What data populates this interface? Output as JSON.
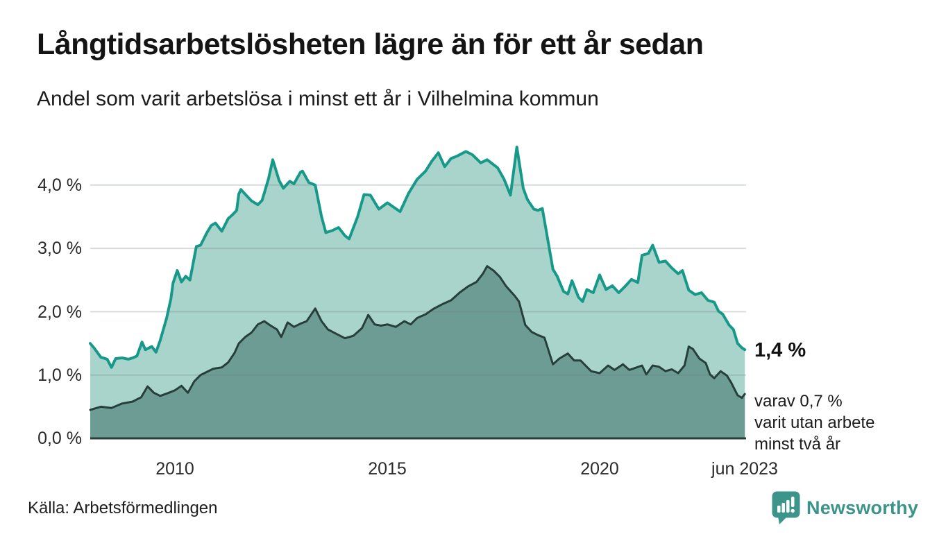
{
  "header": {
    "title": "Långtidsarbetslösheten lägre än för ett år sedan",
    "subtitle": "Andel som varit arbetslösa i minst ett år i Vilhelmina kommun"
  },
  "annotations": {
    "latest_total": "1,4 %",
    "latest_sub_lines": [
      "varav 0,7 %",
      "varit utan arbete",
      "minst två år"
    ]
  },
  "footer": {
    "source": "Källa: Arbetsförmedlingen",
    "brand": "Newsworthy"
  },
  "colors": {
    "brand_teal": "#3c948b",
    "line_main": "#17998a",
    "fill_main": "#a9d4cc",
    "line_sub": "#263f3b",
    "fill_sub": "#6d9c95",
    "grid": "#d9dedd"
  },
  "chart_data": {
    "type": "area",
    "title": "Långtidsarbetslösheten lägre än för ett år sedan",
    "subtitle": "Andel som varit arbetslösa i minst ett år i Vilhelmina kommun",
    "unit": "%",
    "grid": true,
    "legend": "none",
    "x_axis": {
      "min": 2008.0,
      "max": 2023.45,
      "ticks": [
        {
          "label": "2010",
          "year": 2010
        },
        {
          "label": "2015",
          "year": 2015
        },
        {
          "label": "2020",
          "year": 2020
        },
        {
          "label": "jun 2023",
          "year": 2023.42
        }
      ]
    },
    "y_axis": {
      "min": 0,
      "max": 4.75,
      "ticks": [
        {
          "label": "4,0 %",
          "value": 4
        },
        {
          "label": "3,0 %",
          "value": 3
        },
        {
          "label": "2,0 %",
          "value": 2
        },
        {
          "label": "1,0 %",
          "value": 1
        },
        {
          "label": "0,0 %",
          "value": 0
        }
      ]
    },
    "series": [
      {
        "id": "minst-ett-ar",
        "name": "Andel arbetslösa minst ett år",
        "fill": "#a9d4cc",
        "stroke": "#17998a",
        "stroke_width": 4,
        "latest_label": "1,4 %",
        "x": [
          2008.0,
          2008.1,
          2008.25,
          2008.4,
          2008.5,
          2008.6,
          2008.75,
          2008.9,
          2009.0,
          2009.1,
          2009.22,
          2009.3,
          2009.45,
          2009.55,
          2009.65,
          2009.8,
          2009.9,
          2009.95,
          2010.05,
          2010.15,
          2010.25,
          2010.35,
          2010.5,
          2010.6,
          2010.75,
          2010.85,
          2010.95,
          2011.1,
          2011.25,
          2011.35,
          2011.45,
          2011.5,
          2011.55,
          2011.7,
          2011.8,
          2011.95,
          2012.05,
          2012.2,
          2012.3,
          2012.45,
          2012.55,
          2012.7,
          2012.8,
          2012.95,
          2013.0,
          2013.15,
          2013.3,
          2013.45,
          2013.55,
          2013.7,
          2013.85,
          2014.0,
          2014.1,
          2014.3,
          2014.45,
          2014.6,
          2014.8,
          2015.0,
          2015.15,
          2015.3,
          2015.5,
          2015.7,
          2015.9,
          2016.05,
          2016.2,
          2016.35,
          2016.5,
          2016.65,
          2016.85,
          2017.0,
          2017.2,
          2017.35,
          2017.6,
          2017.75,
          2017.9,
          2018.05,
          2018.2,
          2018.3,
          2018.45,
          2018.55,
          2018.65,
          2018.75,
          2018.9,
          2019.0,
          2019.15,
          2019.25,
          2019.35,
          2019.5,
          2019.6,
          2019.7,
          2019.85,
          2020.0,
          2020.15,
          2020.3,
          2020.45,
          2020.6,
          2020.75,
          2020.9,
          2021.0,
          2021.15,
          2021.25,
          2021.4,
          2021.55,
          2021.7,
          2021.85,
          2021.95,
          2022.1,
          2022.25,
          2022.4,
          2022.55,
          2022.7,
          2022.8,
          2022.9,
          2023.05,
          2023.15,
          2023.25,
          2023.35,
          2023.42
        ],
        "y": [
          1.5,
          1.42,
          1.28,
          1.25,
          1.12,
          1.26,
          1.27,
          1.25,
          1.27,
          1.3,
          1.52,
          1.4,
          1.45,
          1.36,
          1.55,
          1.9,
          2.2,
          2.45,
          2.65,
          2.47,
          2.56,
          2.5,
          3.03,
          3.05,
          3.25,
          3.36,
          3.4,
          3.27,
          3.47,
          3.53,
          3.6,
          3.86,
          3.93,
          3.82,
          3.75,
          3.69,
          3.76,
          4.1,
          4.4,
          4.07,
          3.95,
          4.06,
          4.02,
          4.2,
          4.22,
          4.04,
          4.0,
          3.5,
          3.25,
          3.28,
          3.33,
          3.2,
          3.15,
          3.5,
          3.85,
          3.84,
          3.62,
          3.72,
          3.65,
          3.58,
          3.87,
          4.09,
          4.22,
          4.38,
          4.51,
          4.29,
          4.42,
          4.46,
          4.53,
          4.48,
          4.35,
          4.4,
          4.27,
          4.09,
          3.84,
          4.6,
          3.95,
          3.77,
          3.62,
          3.6,
          3.63,
          3.25,
          2.67,
          2.56,
          2.32,
          2.28,
          2.49,
          2.23,
          2.16,
          2.35,
          2.3,
          2.58,
          2.35,
          2.41,
          2.3,
          2.4,
          2.51,
          2.46,
          2.89,
          2.92,
          3.05,
          2.78,
          2.8,
          2.69,
          2.6,
          2.65,
          2.34,
          2.27,
          2.3,
          2.18,
          2.15,
          2.01,
          1.96,
          1.79,
          1.72,
          1.5,
          1.43,
          1.4
        ]
      },
      {
        "id": "minst-tva-ar",
        "name": "Andel arbetslösa minst två år",
        "fill": "#6d9c95",
        "stroke": "#263f3b",
        "stroke_width": 3,
        "latest_label": "0,7 %",
        "x": [
          2008.0,
          2008.25,
          2008.5,
          2008.75,
          2009.0,
          2009.2,
          2009.35,
          2009.5,
          2009.65,
          2009.85,
          2010.0,
          2010.15,
          2010.3,
          2010.45,
          2010.6,
          2010.75,
          2010.9,
          2011.1,
          2011.25,
          2011.4,
          2011.5,
          2011.65,
          2011.8,
          2011.95,
          2012.1,
          2012.25,
          2012.4,
          2012.5,
          2012.65,
          2012.8,
          2012.95,
          2013.1,
          2013.3,
          2013.45,
          2013.6,
          2013.8,
          2014.0,
          2014.2,
          2014.4,
          2014.55,
          2014.7,
          2014.85,
          2015.0,
          2015.2,
          2015.4,
          2015.55,
          2015.7,
          2015.9,
          2016.1,
          2016.3,
          2016.5,
          2016.7,
          2016.9,
          2017.1,
          2017.25,
          2017.35,
          2017.5,
          2017.65,
          2017.8,
          2018.0,
          2018.1,
          2018.25,
          2018.4,
          2018.55,
          2018.7,
          2018.9,
          2019.05,
          2019.25,
          2019.4,
          2019.55,
          2019.8,
          2020.0,
          2020.2,
          2020.35,
          2020.55,
          2020.7,
          2021.0,
          2021.1,
          2021.25,
          2021.4,
          2021.55,
          2021.7,
          2021.85,
          2022.0,
          2022.1,
          2022.2,
          2022.35,
          2022.5,
          2022.6,
          2022.7,
          2022.85,
          2023.0,
          2023.1,
          2023.25,
          2023.35,
          2023.42
        ],
        "y": [
          0.45,
          0.5,
          0.48,
          0.55,
          0.58,
          0.65,
          0.82,
          0.72,
          0.67,
          0.72,
          0.76,
          0.83,
          0.72,
          0.9,
          1.0,
          1.05,
          1.1,
          1.12,
          1.2,
          1.35,
          1.5,
          1.6,
          1.67,
          1.8,
          1.85,
          1.78,
          1.72,
          1.6,
          1.83,
          1.76,
          1.81,
          1.85,
          2.05,
          1.85,
          1.72,
          1.65,
          1.58,
          1.62,
          1.74,
          1.95,
          1.8,
          1.78,
          1.8,
          1.76,
          1.85,
          1.8,
          1.9,
          1.96,
          2.05,
          2.12,
          2.18,
          2.3,
          2.4,
          2.47,
          2.6,
          2.72,
          2.65,
          2.55,
          2.4,
          2.25,
          2.16,
          1.79,
          1.68,
          1.63,
          1.59,
          1.17,
          1.26,
          1.34,
          1.23,
          1.23,
          1.06,
          1.03,
          1.15,
          1.08,
          1.17,
          1.08,
          1.15,
          1.01,
          1.15,
          1.13,
          1.06,
          1.09,
          1.03,
          1.15,
          1.45,
          1.41,
          1.26,
          1.19,
          1.01,
          0.95,
          1.06,
          0.99,
          0.88,
          0.68,
          0.64,
          0.7
        ]
      }
    ]
  }
}
